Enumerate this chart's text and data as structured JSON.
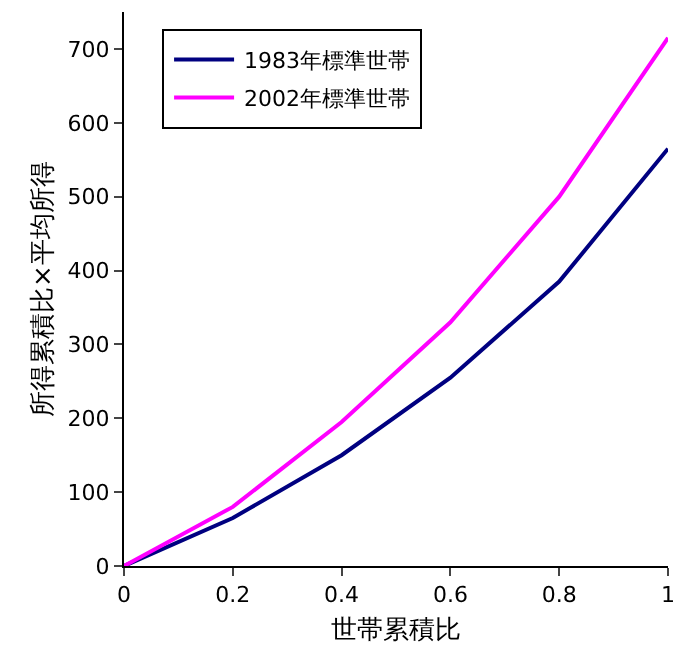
{
  "chart_data": {
    "type": "line",
    "xlabel": "世帯累積比",
    "ylabel": "所得累積比×平均所得",
    "x": [
      0,
      0.2,
      0.4,
      0.6,
      0.8,
      1
    ],
    "series": [
      {
        "name": "1983年標準世帯",
        "color": "#000080",
        "values": [
          0,
          65,
          150,
          255,
          385,
          565
        ]
      },
      {
        "name": "2002年標準世帯",
        "color": "#ff00ff",
        "values": [
          0,
          80,
          195,
          330,
          500,
          715
        ]
      }
    ],
    "xlim": [
      0,
      1
    ],
    "xticks": [
      0,
      0.2,
      0.4,
      0.6,
      0.8,
      1
    ],
    "ylim": [
      0,
      750
    ],
    "yticks": [
      0,
      100,
      200,
      300,
      400,
      500,
      600,
      700
    ],
    "grid": false,
    "legend": "top left",
    "marker": "none",
    "line_style": "solid"
  }
}
